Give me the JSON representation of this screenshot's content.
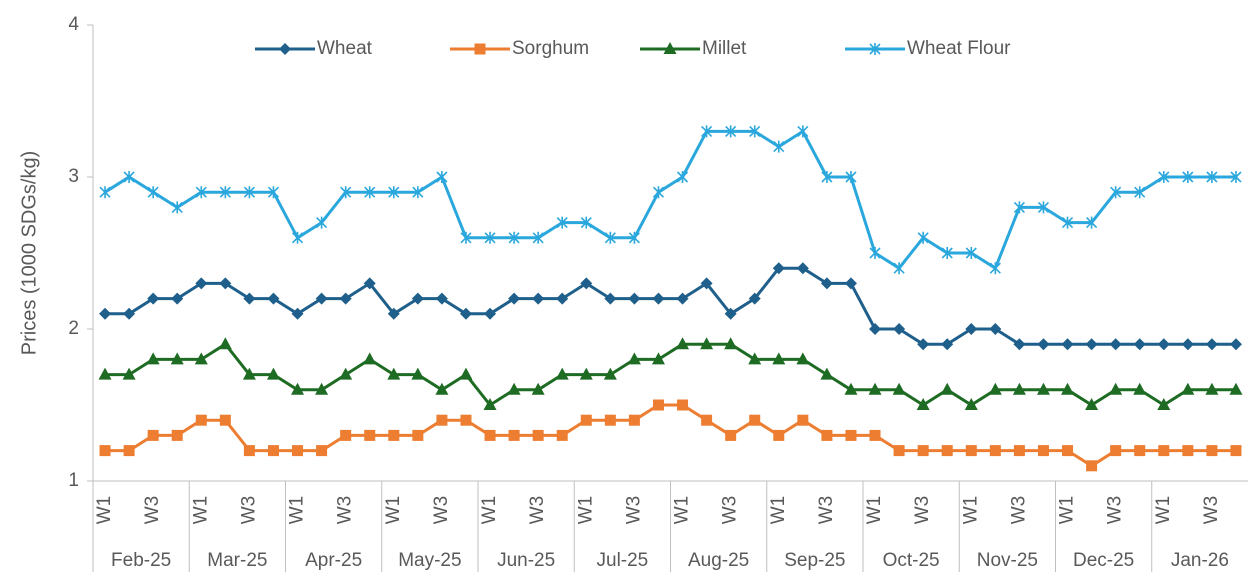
{
  "chart_data": {
    "type": "line",
    "y_label": "Prices (1000 SDGs/kg)",
    "categories": [
      "W1",
      null,
      "W3",
      null,
      "W1",
      null,
      "W3",
      null,
      "W1",
      null,
      "W3",
      null,
      "W1",
      null,
      "W3",
      null,
      "W1",
      null,
      "W3",
      null,
      "W1",
      null,
      "W3",
      null,
      "W1",
      null,
      "W3",
      null,
      "W1",
      null,
      "W3",
      null,
      "W1",
      null,
      "W3",
      null,
      "W1",
      null,
      "W3",
      null,
      "W1",
      null,
      "W3",
      null,
      "W1",
      null,
      "W3",
      null
    ],
    "groups": [
      "Feb-25",
      "Mar-25",
      "Apr-25",
      "May-25",
      "Jun-25",
      "Jul-25",
      "Aug-25",
      "Sep-25",
      "Oct-25",
      "Nov-25",
      "Dec-25",
      "Jan-26"
    ],
    "series": [
      {
        "name": "Wheat",
        "color": "#1f5f8b",
        "marker": "diamond",
        "values": [
          2.1,
          2.1,
          2.2,
          2.2,
          2.3,
          2.3,
          2.2,
          2.2,
          2.1,
          2.2,
          2.2,
          2.3,
          2.1,
          2.2,
          2.2,
          2.1,
          2.1,
          2.2,
          2.2,
          2.2,
          2.3,
          2.2,
          2.2,
          2.2,
          2.2,
          2.3,
          2.1,
          2.2,
          2.4,
          2.4,
          2.3,
          2.3,
          2.0,
          2.0,
          1.9,
          1.9,
          2.0,
          2.0,
          1.9,
          1.9,
          1.9,
          1.9,
          1.9,
          1.9,
          1.9,
          1.9,
          1.9,
          1.9
        ]
      },
      {
        "name": "Sorghum",
        "color": "#ed7d31",
        "marker": "square",
        "values": [
          1.2,
          1.2,
          1.3,
          1.3,
          1.4,
          1.4,
          1.2,
          1.2,
          1.2,
          1.2,
          1.3,
          1.3,
          1.3,
          1.3,
          1.4,
          1.4,
          1.3,
          1.3,
          1.3,
          1.3,
          1.4,
          1.4,
          1.4,
          1.5,
          1.5,
          1.4,
          1.3,
          1.4,
          1.3,
          1.4,
          1.3,
          1.3,
          1.3,
          1.2,
          1.2,
          1.2,
          1.2,
          1.2,
          1.2,
          1.2,
          1.2,
          1.1,
          1.2,
          1.2,
          1.2,
          1.2,
          1.2,
          1.2
        ]
      },
      {
        "name": "Millet",
        "color": "#1e6b23",
        "marker": "triangle",
        "values": [
          1.7,
          1.7,
          1.8,
          1.8,
          1.8,
          1.9,
          1.7,
          1.7,
          1.6,
          1.6,
          1.7,
          1.8,
          1.7,
          1.7,
          1.6,
          1.7,
          1.5,
          1.6,
          1.6,
          1.7,
          1.7,
          1.7,
          1.8,
          1.8,
          1.9,
          1.9,
          1.9,
          1.8,
          1.8,
          1.8,
          1.7,
          1.6,
          1.6,
          1.6,
          1.5,
          1.6,
          1.5,
          1.6,
          1.6,
          1.6,
          1.6,
          1.5,
          1.6,
          1.6,
          1.5,
          1.6,
          1.6,
          1.6
        ]
      },
      {
        "name": "Wheat Flour",
        "color": "#2aa7dc",
        "marker": "star",
        "values": [
          2.9,
          3.0,
          2.9,
          2.8,
          2.9,
          2.9,
          2.9,
          2.9,
          2.6,
          2.7,
          2.9,
          2.9,
          2.9,
          2.9,
          3.0,
          2.6,
          2.6,
          2.6,
          2.6,
          2.7,
          2.7,
          2.6,
          2.6,
          2.9,
          3.0,
          3.3,
          3.3,
          3.3,
          3.2,
          3.3,
          3.0,
          3.0,
          2.5,
          2.4,
          2.6,
          2.5,
          2.5,
          2.4,
          2.8,
          2.8,
          2.7,
          2.7,
          2.9,
          2.9,
          3.0,
          3.0,
          3.0,
          3.0
        ]
      }
    ],
    "ylim": [
      1,
      4
    ],
    "yticks": [
      1,
      2,
      3,
      4
    ],
    "grid": false,
    "legend": "top"
  }
}
